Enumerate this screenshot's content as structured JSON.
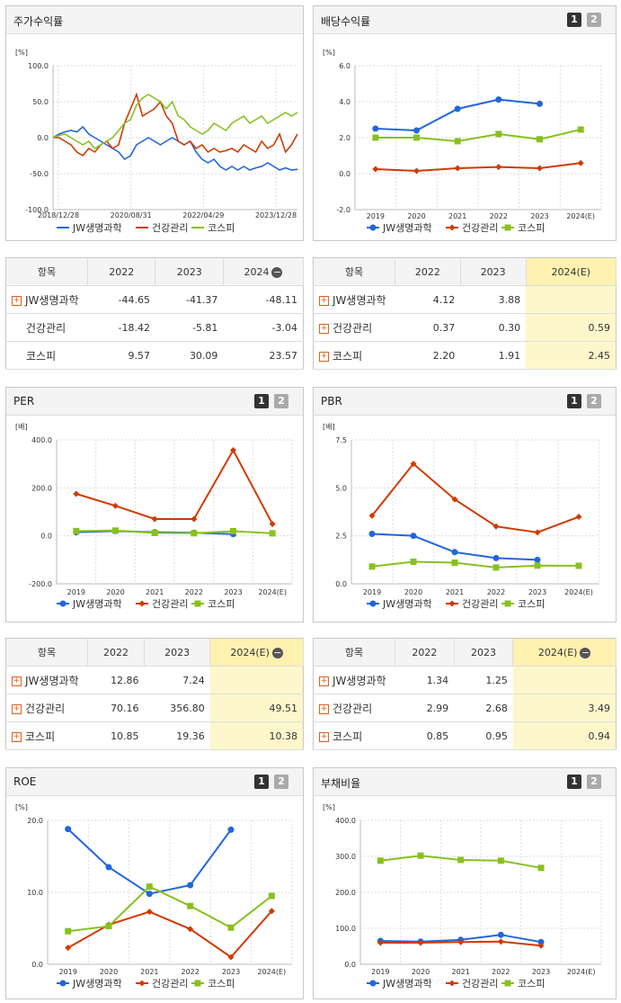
{
  "colors": {
    "jw": "#2266dd",
    "gk": "#d03a00",
    "ks": "#88c020"
  },
  "charts": [
    {
      "id": "stock",
      "title": "주가수익률",
      "unit": "[%]",
      "buttons": false,
      "type": "line",
      "ylim": [
        -100,
        100
      ],
      "yticks": [
        "100.0",
        "50.0",
        "0.0",
        "-50.0",
        "-100.0"
      ],
      "xticks": [
        "2018/12/28",
        "2020/08/31",
        "2022/04/29",
        "2023/12/28"
      ],
      "series": [
        {
          "key": "jw",
          "name": "JW생명과학",
          "marker": false,
          "values": [
            0,
            5,
            8,
            10,
            8,
            15,
            5,
            0,
            -5,
            -10,
            -15,
            -20,
            -30,
            -25,
            -10,
            -5,
            0,
            -5,
            -10,
            -5,
            0,
            -5,
            -10,
            -5,
            -20,
            -30,
            -35,
            -30,
            -40,
            -45,
            -40,
            -45,
            -40,
            -45,
            -42,
            -40,
            -35,
            -40,
            -45,
            -42,
            -45,
            -44
          ]
        },
        {
          "key": "gk",
          "name": "건강관리",
          "marker": false,
          "values": [
            0,
            0,
            -5,
            -10,
            -20,
            -25,
            -15,
            -20,
            -10,
            -5,
            -15,
            -10,
            20,
            40,
            60,
            30,
            35,
            40,
            50,
            30,
            20,
            -5,
            -10,
            -5,
            -15,
            -10,
            -20,
            -15,
            -20,
            -18,
            -15,
            -20,
            -10,
            -15,
            -20,
            -5,
            -15,
            -10,
            5,
            -20,
            -10,
            5
          ]
        },
        {
          "key": "ks",
          "name": "코스피",
          "marker": false,
          "values": [
            0,
            3,
            5,
            0,
            -5,
            -10,
            -5,
            -15,
            -10,
            -5,
            0,
            10,
            20,
            25,
            45,
            55,
            60,
            55,
            50,
            40,
            50,
            30,
            25,
            15,
            10,
            5,
            10,
            20,
            15,
            10,
            20,
            25,
            30,
            20,
            25,
            30,
            20,
            25,
            30,
            35,
            30,
            35
          ]
        }
      ]
    },
    {
      "id": "div",
      "title": "배당수익률",
      "unit": "[%]",
      "buttons": true,
      "ylim": [
        -2,
        6
      ],
      "yticks": [
        "6.0",
        "4.0",
        "2.0",
        "0.0",
        "-2.0"
      ],
      "xticks": [
        "2019",
        "2020",
        "2021",
        "2022",
        "2023",
        "2024(E)"
      ],
      "series": [
        {
          "key": "jw",
          "name": "JW생명과학",
          "marker": "circle",
          "values": [
            2.5,
            2.4,
            3.6,
            4.12,
            3.88,
            null
          ]
        },
        {
          "key": "gk",
          "name": "건강관리",
          "marker": "diamond",
          "values": [
            0.25,
            0.15,
            0.3,
            0.37,
            0.3,
            0.59
          ]
        },
        {
          "key": "ks",
          "name": "코스피",
          "marker": "square",
          "values": [
            2.0,
            2.0,
            1.8,
            2.2,
            1.91,
            2.45
          ]
        }
      ]
    },
    {
      "id": "per",
      "title": "PER",
      "unit": "[배]",
      "buttons": true,
      "ylim": [
        -200,
        400
      ],
      "yticks": [
        "400.0",
        "200.0",
        "0.0",
        "-200.0"
      ],
      "xticks": [
        "2019",
        "2020",
        "2021",
        "2022",
        "2023",
        "2024(E)"
      ],
      "series": [
        {
          "key": "jw",
          "name": "JW생명과학",
          "marker": "circle",
          "values": [
            15,
            20,
            15,
            12.86,
            7.24,
            null
          ]
        },
        {
          "key": "gk",
          "name": "건강관리",
          "marker": "diamond",
          "values": [
            175,
            125,
            70,
            70.16,
            356.8,
            49.51
          ]
        },
        {
          "key": "ks",
          "name": "코스피",
          "marker": "square",
          "values": [
            20,
            22,
            12,
            10.85,
            19.36,
            10.38
          ]
        }
      ]
    },
    {
      "id": "pbr",
      "title": "PBR",
      "unit": "[배]",
      "buttons": true,
      "ylim": [
        0,
        7.5
      ],
      "yticks": [
        "7.5",
        "5.0",
        "2.5",
        "0.0"
      ],
      "xticks": [
        "2019",
        "2020",
        "2021",
        "2022",
        "2023",
        "2024(E)"
      ],
      "series": [
        {
          "key": "jw",
          "name": "JW생명과학",
          "marker": "circle",
          "values": [
            2.6,
            2.5,
            1.65,
            1.34,
            1.25,
            null
          ]
        },
        {
          "key": "gk",
          "name": "건강관리",
          "marker": "diamond",
          "values": [
            3.55,
            6.25,
            4.4,
            2.99,
            2.68,
            3.49
          ]
        },
        {
          "key": "ks",
          "name": "코스피",
          "marker": "square",
          "values": [
            0.9,
            1.15,
            1.1,
            0.85,
            0.95,
            0.94
          ]
        }
      ]
    },
    {
      "id": "roe",
      "title": "ROE",
      "unit": "[%]",
      "buttons": true,
      "ylim": [
        0,
        20
      ],
      "yticks": [
        "20.0",
        "10.0",
        "0.0"
      ],
      "xticks": [
        "2019",
        "2020",
        "2021",
        "2022",
        "2023",
        "2024(E)"
      ],
      "series": [
        {
          "key": "jw",
          "name": "JW생명과학",
          "marker": "circle",
          "values": [
            18.8,
            13.5,
            9.8,
            11,
            18.7,
            null
          ]
        },
        {
          "key": "gk",
          "name": "건강관리",
          "marker": "diamond",
          "values": [
            2.3,
            5.5,
            7.3,
            4.9,
            1,
            7.4
          ]
        },
        {
          "key": "ks",
          "name": "코스피",
          "marker": "square",
          "values": [
            4.6,
            5.3,
            10.8,
            8.1,
            5.1,
            9.5
          ]
        }
      ]
    },
    {
      "id": "debt",
      "title": "부채비율",
      "unit": "[%]",
      "buttons": true,
      "ylim": [
        0,
        400
      ],
      "yticks": [
        "400.0",
        "300.0",
        "200.0",
        "100.0",
        "0.0"
      ],
      "xticks": [
        "2019",
        "2020",
        "2021",
        "2022",
        "2023",
        "2024(E)"
      ],
      "series": [
        {
          "key": "jw",
          "name": "JW생명과학",
          "marker": "circle",
          "values": [
            65,
            63,
            68,
            82,
            62,
            null
          ]
        },
        {
          "key": "gk",
          "name": "건강관리",
          "marker": "diamond",
          "values": [
            60,
            60,
            62,
            63,
            52,
            null
          ]
        },
        {
          "key": "ks",
          "name": "코스피",
          "marker": "square",
          "values": [
            288,
            302,
            290,
            288,
            268,
            null
          ]
        }
      ]
    }
  ],
  "tables": [
    {
      "id": "t_stock",
      "head": [
        "항목",
        "2022",
        "2023",
        "2024"
      ],
      "minus": true,
      "hl": false,
      "rows": [
        [
          "JW생명과학",
          "-44.65",
          "-41.37",
          "-48.11"
        ],
        [
          "건강관리",
          "-18.42",
          "-5.81",
          "-3.04"
        ],
        [
          "코스피",
          "9.57",
          "30.09",
          "23.57"
        ]
      ],
      "plus": [
        true,
        false,
        false
      ]
    },
    {
      "id": "t_div",
      "head": [
        "항목",
        "2022",
        "2023",
        "2024(E)"
      ],
      "minus": false,
      "hl": true,
      "rows": [
        [
          "JW생명과학",
          "4.12",
          "3.88",
          ""
        ],
        [
          "건강관리",
          "0.37",
          "0.30",
          "0.59"
        ],
        [
          "코스피",
          "2.20",
          "1.91",
          "2.45"
        ]
      ],
      "plus": [
        true,
        true,
        true
      ]
    },
    {
      "id": "t_per",
      "head": [
        "항목",
        "2022",
        "2023",
        "2024(E)"
      ],
      "minus": true,
      "hl": true,
      "rows": [
        [
          "JW생명과학",
          "12.86",
          "7.24",
          ""
        ],
        [
          "건강관리",
          "70.16",
          "356.80",
          "49.51"
        ],
        [
          "코스피",
          "10.85",
          "19.36",
          "10.38"
        ]
      ],
      "plus": [
        true,
        true,
        true
      ]
    },
    {
      "id": "t_pbr",
      "head": [
        "항목",
        "2022",
        "2023",
        "2024(E)"
      ],
      "minus": true,
      "hl": true,
      "rows": [
        [
          "JW생명과학",
          "1.34",
          "1.25",
          ""
        ],
        [
          "건강관리",
          "2.99",
          "2.68",
          "3.49"
        ],
        [
          "코스피",
          "0.85",
          "0.95",
          "0.94"
        ]
      ],
      "plus": [
        true,
        true,
        true
      ]
    }
  ]
}
